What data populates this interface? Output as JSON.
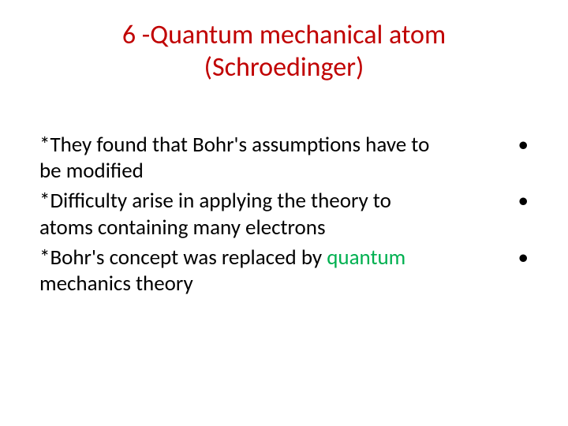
{
  "slide": {
    "title": {
      "line1": "6 -Quantum mechanical atom",
      "line2": "(Schroedinger)",
      "color": "#c00000",
      "fontsize": 34
    },
    "bullets": [
      {
        "text": "*They found that Bohr's assumptions have to be modified",
        "marker": "•"
      },
      {
        "text": "*Difficulty arise in applying the theory to atoms containing many electrons",
        "marker": "•"
      },
      {
        "prefix": " *Bohr's concept was replaced by ",
        "highlight": "quantum",
        "suffix": " mechanics theory",
        "marker": "•"
      }
    ],
    "body_fontsize": 27,
    "body_color": "#000000",
    "highlight_color": "#00b050",
    "background_color": "#ffffff"
  }
}
